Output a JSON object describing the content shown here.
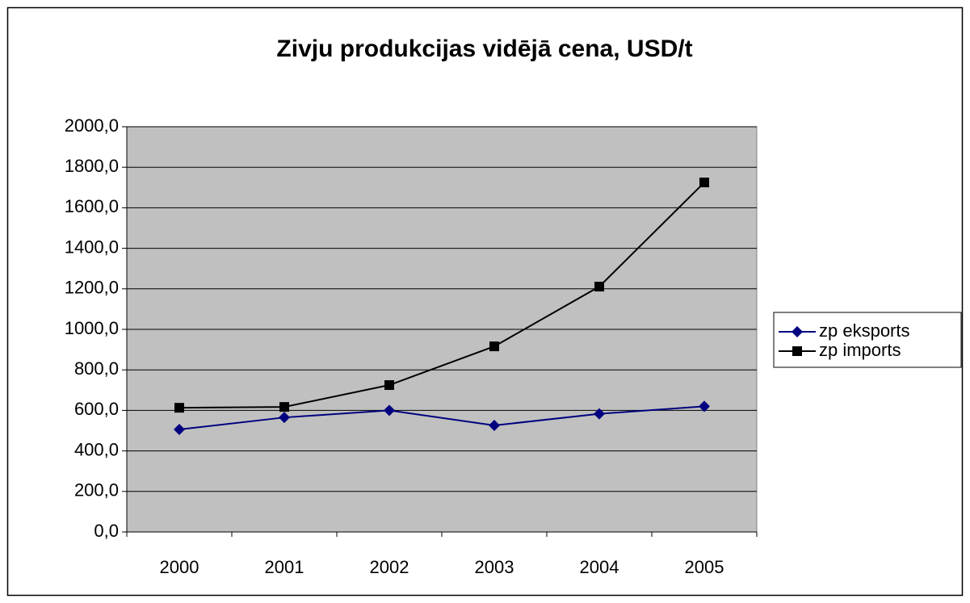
{
  "chart_data": {
    "type": "line",
    "title": "Zivju produkcijas vidējā cena, USD/t",
    "categories": [
      "2000",
      "2001",
      "2002",
      "2003",
      "2004",
      "2005"
    ],
    "series": [
      {
        "name": "zp eksports",
        "color": "#000080",
        "marker": "diamond",
        "values": [
          506,
          565,
          600,
          526,
          583,
          620
        ]
      },
      {
        "name": "zp imports",
        "color": "#000000",
        "marker": "square",
        "values": [
          613,
          617,
          725,
          916,
          1211,
          1725
        ]
      }
    ],
    "ylim": [
      0,
      2000
    ],
    "yticks": [
      {
        "value": 0,
        "label": "0,0"
      },
      {
        "value": 200,
        "label": "200,0"
      },
      {
        "value": 400,
        "label": "400,0"
      },
      {
        "value": 600,
        "label": "600,0"
      },
      {
        "value": 800,
        "label": "800,0"
      },
      {
        "value": 1000,
        "label": "1000,0"
      },
      {
        "value": 1200,
        "label": "1200,0"
      },
      {
        "value": 1400,
        "label": "1400,0"
      },
      {
        "value": 1600,
        "label": "1600,0"
      },
      {
        "value": 1800,
        "label": "1800,0"
      },
      {
        "value": 2000,
        "label": "2000,0"
      }
    ],
    "grid": true,
    "plot_background": "#c0c0c0",
    "legend": "right"
  }
}
